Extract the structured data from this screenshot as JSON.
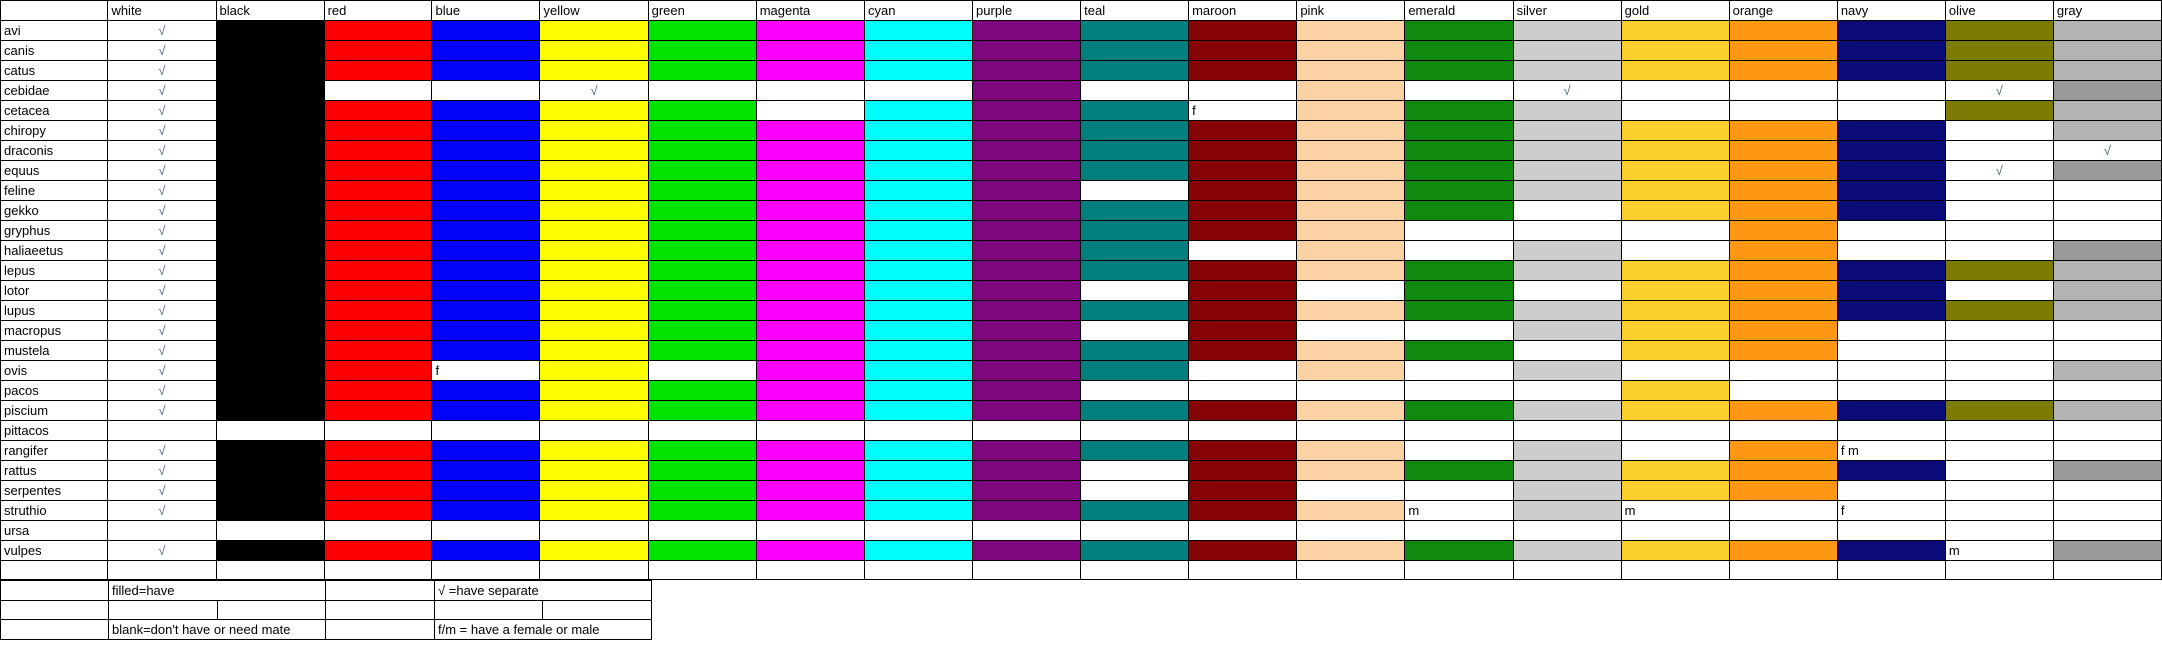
{
  "table": {
    "columns": [
      "white",
      "black",
      "red",
      "blue",
      "yellow",
      "green",
      "magenta",
      "cyan",
      "purple",
      "teal",
      "maroon",
      "pink",
      "emerald",
      "silver",
      "gold",
      "orange",
      "navy",
      "olive",
      "gray"
    ],
    "colors": {
      "white": "#ffffff",
      "black": "#000000",
      "red": "#fb0000",
      "blue": "#0202f8",
      "yellow": "#fdfd00",
      "green": "#00e400",
      "magenta": "#fe00fe",
      "cyan": "#00fefe",
      "purple": "#7e067e",
      "teal": "#047f7f",
      "maroon": "#860404",
      "pink": "#fbd2a4",
      "emerald": "#0f8a0f",
      "silver": "#cdcdcd",
      "gold": "#fcd02c",
      "orange": "#fd9714",
      "navy": "#0a0a78",
      "olive": "#7c7c04",
      "gray": "#b3b3b3"
    },
    "gray_dark_fill": "#999999",
    "checkmark": "√",
    "rows": [
      {
        "name": "avi",
        "cells": [
          "√",
          "F",
          "F",
          "F",
          "F",
          "F",
          "F",
          "F",
          "F",
          "F",
          "F",
          "F",
          "F",
          "F",
          "F",
          "F",
          "F",
          "F",
          "F"
        ]
      },
      {
        "name": "canis",
        "cells": [
          "√",
          "F",
          "F",
          "F",
          "F",
          "F",
          "F",
          "F",
          "F",
          "F",
          "F",
          "F",
          "F",
          "F",
          "F",
          "F",
          "F",
          "F",
          "F"
        ]
      },
      {
        "name": "catus",
        "cells": [
          "√",
          "F",
          "F",
          "F",
          "F",
          "F",
          "F",
          "F",
          "F",
          "F",
          "F",
          "F",
          "F",
          "F",
          "F",
          "F",
          "F",
          "F",
          "F"
        ]
      },
      {
        "name": "cebidae",
        "cells": [
          "√",
          "F",
          "",
          "",
          "√",
          "",
          "",
          "",
          "F",
          "",
          "",
          "F",
          "",
          "√",
          "",
          "",
          "",
          "√",
          "D"
        ]
      },
      {
        "name": "cetacea",
        "cells": [
          "√",
          "F",
          "F",
          "F",
          "F",
          "F",
          "",
          "F",
          "F",
          "F",
          "f",
          "F",
          "F",
          "F",
          "",
          "",
          "",
          "F",
          "F"
        ]
      },
      {
        "name": "chiropy",
        "cells": [
          "√",
          "F",
          "F",
          "F",
          "F",
          "F",
          "F",
          "F",
          "F",
          "F",
          "F",
          "F",
          "F",
          "F",
          "F",
          "F",
          "F",
          "",
          "F"
        ]
      },
      {
        "name": "draconis",
        "cells": [
          "√",
          "F",
          "F",
          "F",
          "F",
          "F",
          "F",
          "F",
          "F",
          "F",
          "F",
          "F",
          "F",
          "F",
          "F",
          "F",
          "F",
          "",
          "√"
        ]
      },
      {
        "name": "equus",
        "cells": [
          "√",
          "F",
          "F",
          "F",
          "F",
          "F",
          "F",
          "F",
          "F",
          "F",
          "F",
          "F",
          "F",
          "F",
          "F",
          "F",
          "F",
          "√",
          "D"
        ]
      },
      {
        "name": "feline",
        "cells": [
          "√",
          "F",
          "F",
          "F",
          "F",
          "F",
          "F",
          "F",
          "F",
          "",
          "F",
          "F",
          "F",
          "F",
          "F",
          "F",
          "F",
          "",
          ""
        ]
      },
      {
        "name": "gekko",
        "cells": [
          "√",
          "F",
          "F",
          "F",
          "F",
          "F",
          "F",
          "F",
          "F",
          "F",
          "F",
          "F",
          "F",
          "",
          "F",
          "F",
          "F",
          "",
          ""
        ]
      },
      {
        "name": "gryphus",
        "cells": [
          "√",
          "F",
          "F",
          "F",
          "F",
          "F",
          "F",
          "F",
          "F",
          "F",
          "F",
          "F",
          "",
          "",
          "",
          "F",
          "",
          "",
          ""
        ]
      },
      {
        "name": "haliaeetus",
        "cells": [
          "√",
          "F",
          "F",
          "F",
          "F",
          "F",
          "F",
          "F",
          "F",
          "F",
          "",
          "F",
          "",
          "F",
          "",
          "F",
          "",
          "",
          "D"
        ]
      },
      {
        "name": "lepus",
        "cells": [
          "√",
          "F",
          "F",
          "F",
          "F",
          "F",
          "F",
          "F",
          "F",
          "F",
          "F",
          "F",
          "F",
          "F",
          "F",
          "F",
          "F",
          "F",
          "F"
        ]
      },
      {
        "name": "lotor",
        "cells": [
          "√",
          "F",
          "F",
          "F",
          "F",
          "F",
          "F",
          "F",
          "F",
          "",
          "F",
          "",
          "F",
          "",
          "F",
          "F",
          "F",
          "",
          "F"
        ]
      },
      {
        "name": "lupus",
        "cells": [
          "√",
          "F",
          "F",
          "F",
          "F",
          "F",
          "F",
          "F",
          "F",
          "F",
          "F",
          "F",
          "F",
          "F",
          "F",
          "F",
          "F",
          "F",
          "F"
        ]
      },
      {
        "name": "macropus",
        "cells": [
          "√",
          "F",
          "F",
          "F",
          "F",
          "F",
          "F",
          "F",
          "F",
          "",
          "F",
          "",
          "",
          "F",
          "F",
          "F",
          "",
          "",
          ""
        ]
      },
      {
        "name": "mustela",
        "cells": [
          "√",
          "F",
          "F",
          "F",
          "F",
          "F",
          "F",
          "F",
          "F",
          "F",
          "F",
          "F",
          "F",
          "",
          "F",
          "F",
          "",
          "",
          ""
        ]
      },
      {
        "name": "ovis",
        "cells": [
          "√",
          "F",
          "F",
          "f",
          "F",
          "",
          "F",
          "F",
          "F",
          "F",
          "",
          "F",
          "",
          "F",
          "",
          "",
          "",
          "",
          "F"
        ]
      },
      {
        "name": "pacos",
        "cells": [
          "√",
          "F",
          "F",
          "F",
          "F",
          "F",
          "F",
          "F",
          "F",
          "",
          "",
          "",
          "",
          "",
          "F",
          "",
          "",
          "",
          ""
        ]
      },
      {
        "name": "piscium",
        "cells": [
          "√",
          "F",
          "F",
          "F",
          "F",
          "F",
          "F",
          "F",
          "F",
          "F",
          "F",
          "F",
          "F",
          "F",
          "F",
          "F",
          "F",
          "F",
          "F"
        ]
      },
      {
        "name": "pittacos",
        "cells": [
          "",
          "",
          "",
          "",
          "",
          "",
          "",
          "",
          "",
          "",
          "",
          "",
          "",
          "",
          "",
          "",
          "",
          "",
          ""
        ]
      },
      {
        "name": "rangifer",
        "cells": [
          "√",
          "F",
          "F",
          "F",
          "F",
          "F",
          "F",
          "F",
          "F",
          "F",
          "F",
          "F",
          "",
          "F",
          "",
          "F",
          "f m",
          "",
          ""
        ]
      },
      {
        "name": "rattus",
        "cells": [
          "√",
          "F",
          "F",
          "F",
          "F",
          "F",
          "F",
          "F",
          "F",
          "",
          "F",
          "F",
          "F",
          "F",
          "F",
          "F",
          "F",
          "",
          "D"
        ]
      },
      {
        "name": "serpentes",
        "cells": [
          "√",
          "F",
          "F",
          "F",
          "F",
          "F",
          "F",
          "F",
          "F",
          "",
          "F",
          "",
          "",
          "F",
          "F",
          "F",
          "",
          "",
          ""
        ]
      },
      {
        "name": "struthio",
        "cells": [
          "√",
          "F",
          "F",
          "F",
          "F",
          "F",
          "F",
          "F",
          "F",
          "F",
          "F",
          "F",
          "m",
          "F",
          "m",
          "",
          "f",
          "",
          ""
        ]
      },
      {
        "name": "ursa",
        "cells": [
          "",
          "",
          "",
          "",
          "",
          "",
          "",
          "",
          "",
          "",
          "",
          "",
          "",
          "",
          "",
          "",
          "",
          "",
          ""
        ]
      },
      {
        "name": "vulpes",
        "cells": [
          "√",
          "F",
          "F",
          "F",
          "F",
          "F",
          "F",
          "F",
          "F",
          "F",
          "F",
          "F",
          "F",
          "F",
          "F",
          "F",
          "F",
          "m",
          "D"
        ]
      },
      {
        "name": "",
        "cells": [
          "",
          "",
          "",
          "",
          "",
          "",
          "",
          "",
          "",
          "",
          "",
          "",
          "",
          "",
          "",
          "",
          "",
          "",
          ""
        ]
      }
    ]
  },
  "legend": {
    "filled_label": "filled=have",
    "separate_label": "√ =have separate",
    "blank_label": "blank=don't have or need mate",
    "fm_label": "f/m = have a female or male"
  }
}
